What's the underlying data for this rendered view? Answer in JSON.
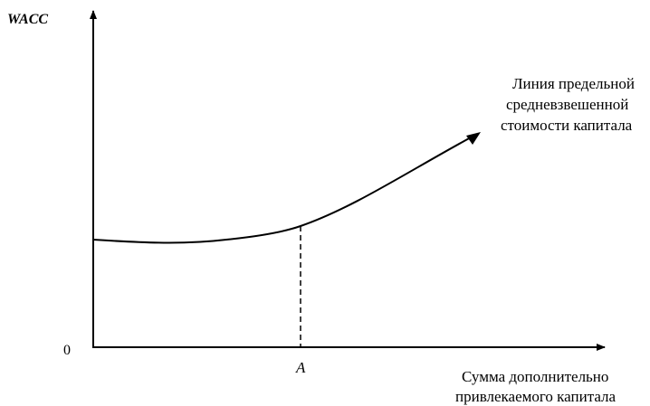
{
  "diagram": {
    "y_axis_label": "WACC",
    "origin_label": "0",
    "point_label": "A",
    "curve_label": [
      "Линия предельной",
      "средневзвешенной",
      "стоимости капитала"
    ],
    "x_axis_label": [
      "Сумма дополнительно",
      "привлекаемого капитала"
    ],
    "colors": {
      "line": "#000000",
      "background": "#ffffff"
    }
  }
}
